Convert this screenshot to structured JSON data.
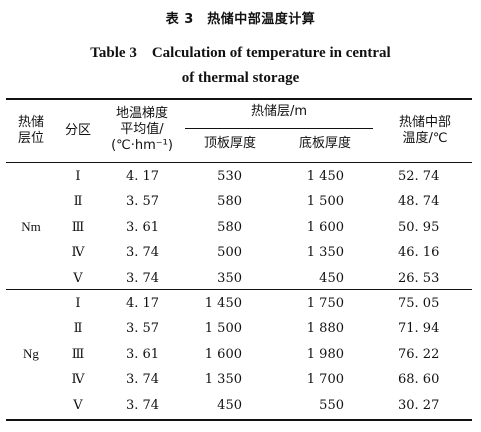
{
  "title": {
    "zh": "表 3　热储中部温度计算",
    "en_line1": "Table 3　Calculation of temperature in central",
    "en_line2": "of thermal storage"
  },
  "headers": {
    "layer": "热储\n层位",
    "zone": "分区",
    "gradient": "地温梯度\n平均值/\n(℃·hm⁻¹)",
    "reservoir_group": "热储层/m",
    "top_thickness": "顶板厚度",
    "bottom_thickness": "底板厚度",
    "temperature": "热储中部\n温度/℃"
  },
  "groups": [
    {
      "layer": "Nm",
      "rows": [
        {
          "zone": "Ⅰ",
          "gradient": "4. 17",
          "top": "530",
          "bottom": "1 450",
          "temp": "52. 74"
        },
        {
          "zone": "Ⅱ",
          "gradient": "3. 57",
          "top": "580",
          "bottom": "1 500",
          "temp": "48. 74"
        },
        {
          "zone": "Ⅲ",
          "gradient": "3. 61",
          "top": "580",
          "bottom": "1 600",
          "temp": "50. 95"
        },
        {
          "zone": "Ⅳ",
          "gradient": "3. 74",
          "top": "500",
          "bottom": "1 350",
          "temp": "46. 16"
        },
        {
          "zone": "Ⅴ",
          "gradient": "3. 74",
          "top": "350",
          "bottom": "450",
          "temp": "26. 53"
        }
      ]
    },
    {
      "layer": "Ng",
      "rows": [
        {
          "zone": "Ⅰ",
          "gradient": "4. 17",
          "top": "1 450",
          "bottom": "1 750",
          "temp": "75. 05"
        },
        {
          "zone": "Ⅱ",
          "gradient": "3. 57",
          "top": "1 500",
          "bottom": "1 880",
          "temp": "71. 94"
        },
        {
          "zone": "Ⅲ",
          "gradient": "3. 61",
          "top": "1 600",
          "bottom": "1 980",
          "temp": "76. 22"
        },
        {
          "zone": "Ⅳ",
          "gradient": "3. 74",
          "top": "1 350",
          "bottom": "1 700",
          "temp": "68. 60"
        },
        {
          "zone": "Ⅴ",
          "gradient": "3. 74",
          "top": "450",
          "bottom": "550",
          "temp": "30. 27"
        }
      ]
    }
  ]
}
